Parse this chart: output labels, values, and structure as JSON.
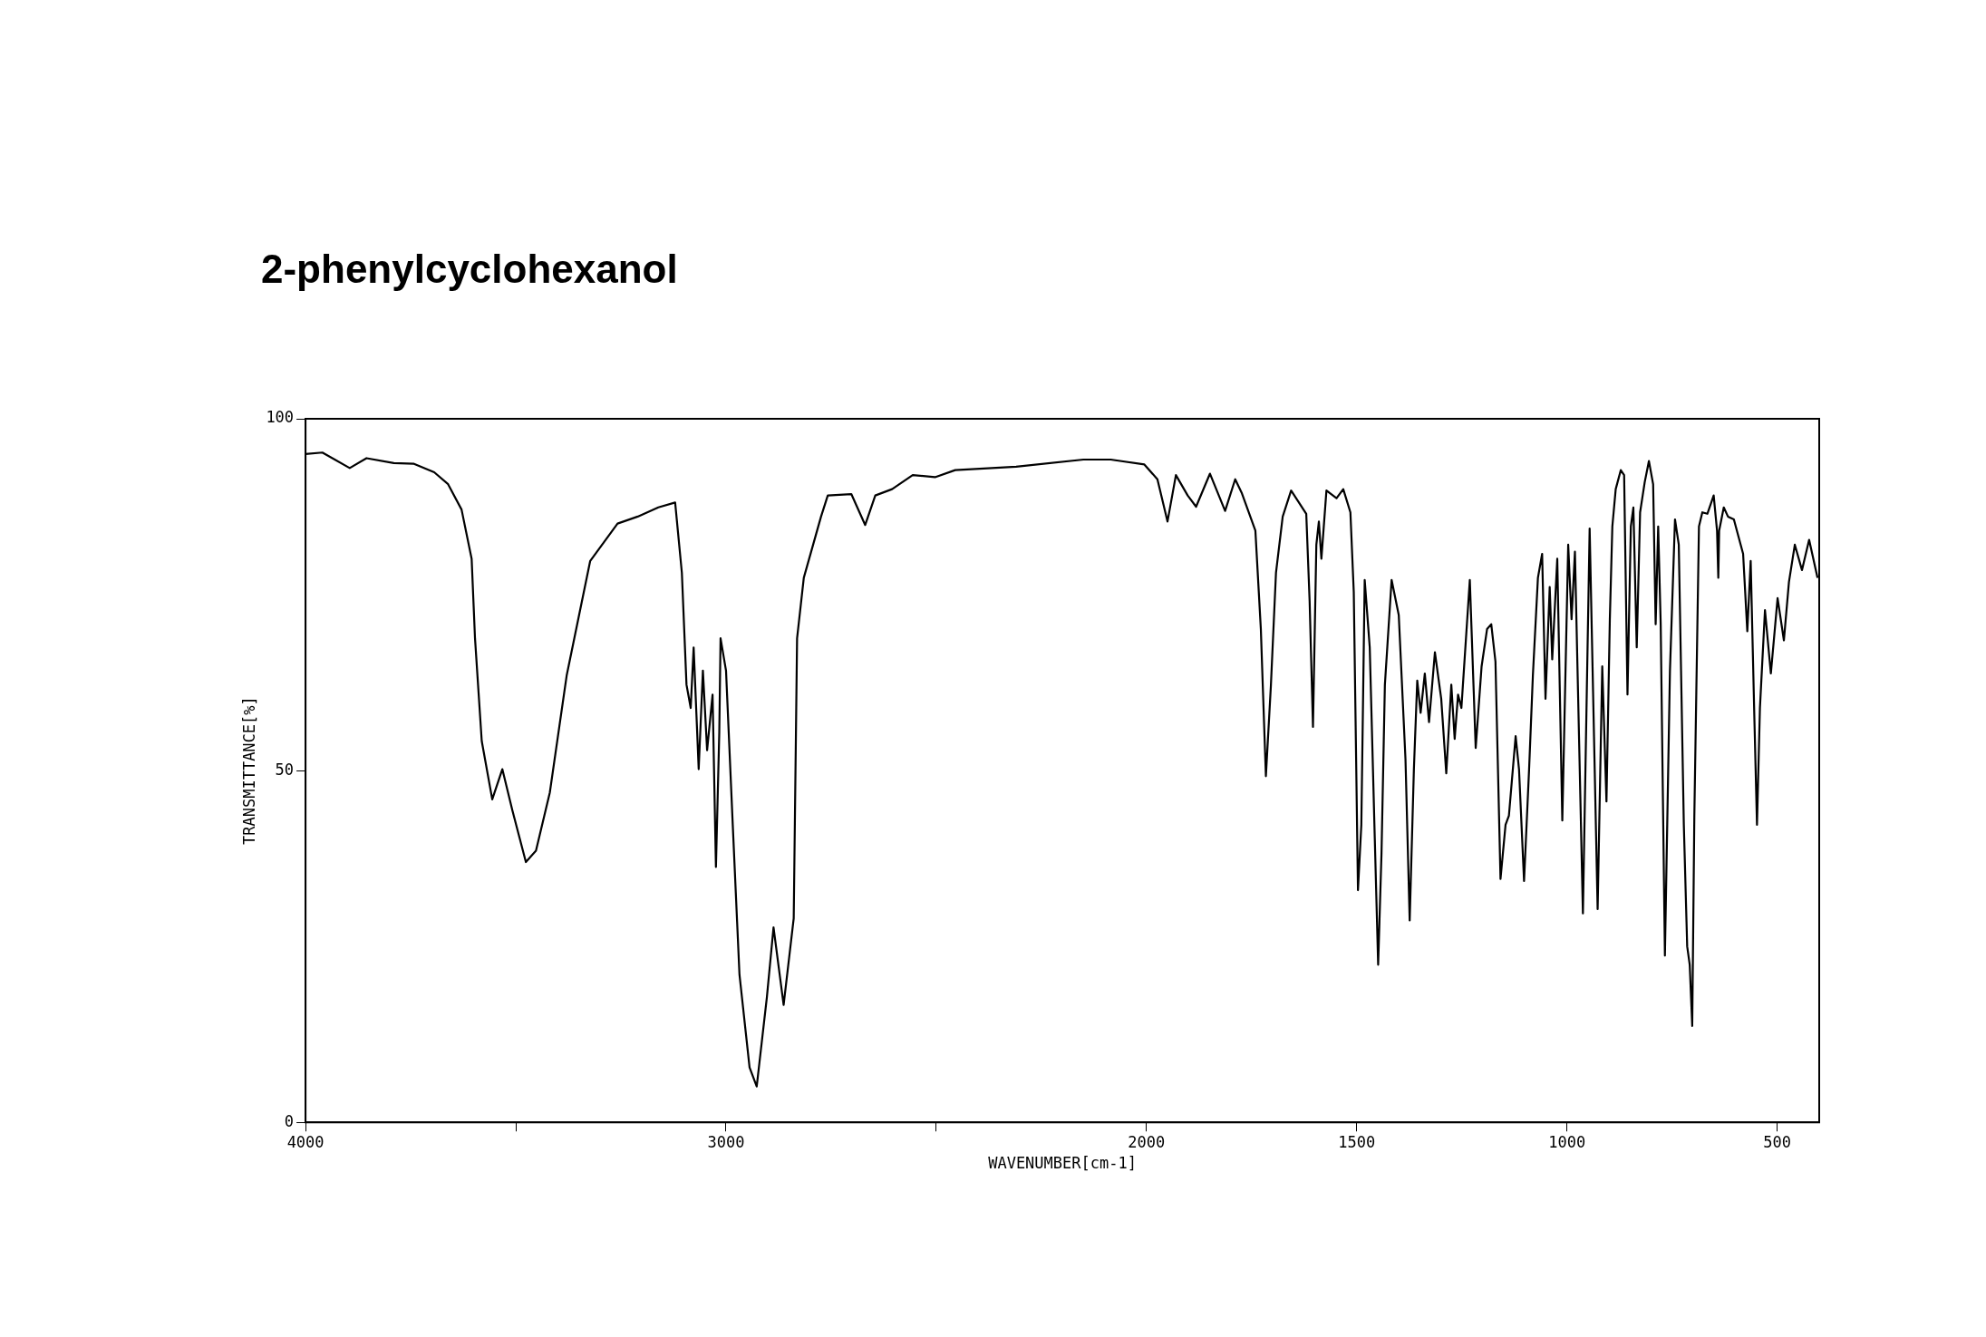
{
  "chart_data": {
    "type": "line",
    "title": "2-phenylcyclohexanol",
    "xlabel": "WAVENUMBER[cm-1]",
    "ylabel": "TRANSMITTANCE[%]",
    "xlim": [
      4000,
      400
    ],
    "xticks": [
      4000,
      {
        "value": 3500,
        "label": null
      },
      3000,
      {
        "value": 2500,
        "label": null
      },
      2000,
      1500,
      1000,
      500
    ],
    "ylim": [
      0,
      100
    ],
    "yticks": [
      0,
      50,
      100
    ],
    "grid": false,
    "legend": false,
    "series": [
      {
        "color": "#000000",
        "x": [
          4000,
          3960,
          3895,
          3855,
          3790,
          3742,
          3694,
          3661,
          3629,
          3605,
          3597,
          3581,
          3556,
          3532,
          3508,
          3476,
          3452,
          3419,
          3379,
          3323,
          3258,
          3210,
          3161,
          3121,
          3105,
          3094,
          3084,
          3077,
          3065,
          3055,
          3045,
          3032,
          3024,
          3016,
          3013,
          3000,
          2984,
          2968,
          2944,
          2927,
          2903,
          2887,
          2863,
          2839,
          2831,
          2815,
          2774,
          2758,
          2702,
          2669,
          2645,
          2605,
          2556,
          2503,
          2455,
          2310,
          2150,
          2085,
          2005,
          1974,
          1950,
          1930,
          1902,
          1882,
          1849,
          1813,
          1789,
          1773,
          1741,
          1728,
          1716,
          1704,
          1692,
          1676,
          1656,
          1620,
          1612,
          1604,
          1596,
          1590,
          1584,
          1572,
          1548,
          1532,
          1515,
          1507,
          1497,
          1489,
          1481,
          1469,
          1457,
          1449,
          1441,
          1433,
          1417,
          1400,
          1384,
          1374,
          1364,
          1356,
          1348,
          1338,
          1328,
          1314,
          1299,
          1287,
          1275,
          1267,
          1259,
          1251,
          1231,
          1217,
          1203,
          1190,
          1180,
          1170,
          1158,
          1146,
          1138,
          1122,
          1114,
          1102,
          1090,
          1081,
          1069,
          1059,
          1051,
          1041,
          1035,
          1023,
          1011,
          997,
          989,
          981,
          962,
          946,
          927,
          916,
          906,
          898,
          892,
          884,
          872,
          864,
          856,
          848,
          842,
          834,
          826,
          815,
          805,
          795,
          789,
          783,
          777,
          767,
          755,
          743,
          734,
          722,
          714,
          708,
          702,
          697,
          686,
          678,
          666,
          651,
          643,
          640,
          638,
          627,
          617,
          603,
          581,
          571,
          563,
          554,
          548,
          541,
          529,
          515,
          499,
          484,
          472,
          458,
          441,
          424,
          404
        ],
        "values": [
          95.0,
          95.2,
          93.0,
          94.4,
          93.7,
          93.6,
          92.4,
          90.7,
          87.1,
          80.1,
          68.8,
          54.2,
          45.9,
          50.2,
          44.3,
          37.0,
          38.6,
          46.9,
          63.5,
          79.8,
          85.1,
          86.1,
          87.4,
          88.1,
          78.1,
          62.2,
          58.9,
          67.5,
          50.2,
          64.2,
          52.9,
          60.8,
          36.3,
          55.5,
          68.8,
          64.2,
          42.3,
          21.0,
          7.8,
          5.1,
          17.7,
          27.7,
          16.7,
          29.0,
          68.8,
          77.4,
          86.1,
          89.1,
          89.3,
          84.9,
          89.1,
          90.0,
          92.0,
          91.7,
          92.7,
          93.2,
          94.2,
          94.2,
          93.5,
          91.4,
          85.4,
          92.0,
          89.1,
          87.5,
          92.2,
          86.9,
          91.4,
          89.4,
          84.1,
          70.1,
          49.2,
          62.2,
          78.1,
          86.1,
          89.8,
          86.5,
          74.1,
          56.2,
          82.1,
          85.4,
          80.1,
          89.8,
          88.7,
          90.0,
          86.7,
          75.4,
          33.0,
          42.3,
          77.1,
          67.5,
          40.3,
          22.4,
          38.3,
          62.2,
          77.1,
          72.1,
          51.6,
          28.7,
          50.2,
          62.8,
          58.2,
          63.8,
          56.9,
          66.8,
          60.2,
          49.6,
          62.2,
          54.5,
          60.8,
          58.9,
          77.1,
          53.2,
          64.8,
          70.1,
          70.8,
          65.5,
          34.6,
          42.3,
          43.6,
          54.9,
          50.2,
          34.3,
          50.2,
          63.5,
          77.4,
          80.8,
          60.2,
          76.1,
          65.8,
          80.1,
          42.9,
          82.1,
          71.5,
          81.1,
          29.7,
          84.4,
          30.3,
          64.8,
          45.6,
          71.5,
          84.7,
          90.0,
          92.7,
          92.0,
          60.8,
          84.7,
          87.4,
          67.5,
          86.7,
          91.0,
          94.0,
          90.7,
          70.8,
          84.7,
          70.8,
          23.7,
          64.2,
          85.7,
          82.1,
          42.3,
          25.0,
          22.4,
          13.7,
          43.6,
          84.7,
          86.7,
          86.5,
          89.1,
          84.1,
          77.4,
          84.1,
          87.4,
          86.1,
          85.7,
          80.8,
          69.8,
          79.8,
          56.9,
          42.3,
          58.9,
          72.8,
          63.8,
          74.5,
          68.5,
          76.8,
          82.1,
          78.5,
          82.8,
          77.4
        ]
      }
    ]
  }
}
